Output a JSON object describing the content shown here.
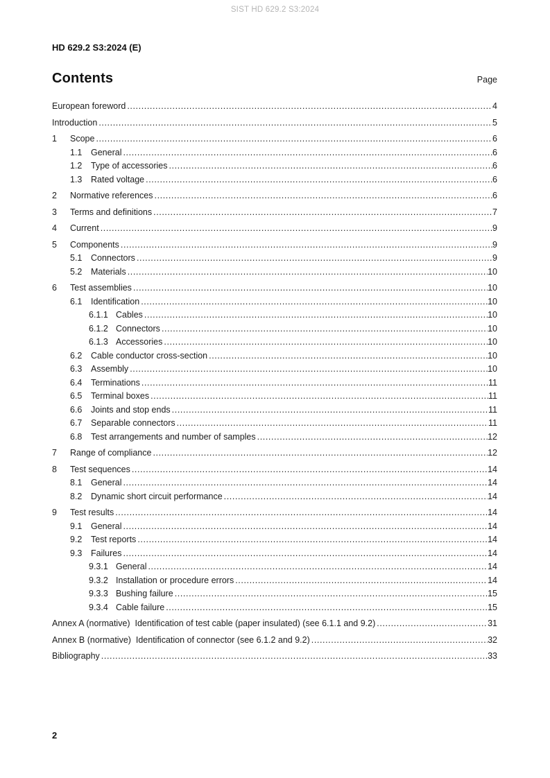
{
  "header": {
    "watermark": "SIST HD 629.2 S3:2024",
    "doc_code": "HD 629.2 S3:2024 (E)"
  },
  "contents": {
    "title": "Contents",
    "page_column_label": "Page"
  },
  "toc": {
    "entries": [
      {
        "level": 0,
        "num": "",
        "label": "European foreword",
        "page": "4"
      },
      {
        "level": 0,
        "num": "",
        "label": "Introduction",
        "page": "5"
      },
      {
        "level": 1,
        "num": "1",
        "label": "Scope",
        "page": "6"
      },
      {
        "level": 2,
        "num": "1.1",
        "label": "General",
        "page": "6"
      },
      {
        "level": 2,
        "num": "1.2",
        "label": "Type of accessories",
        "page": "6"
      },
      {
        "level": 2,
        "num": "1.3",
        "label": "Rated voltage",
        "page": "6"
      },
      {
        "level": 1,
        "num": "2",
        "label": "Normative references",
        "page": "6"
      },
      {
        "level": 1,
        "num": "3",
        "label": "Terms and definitions",
        "page": "7"
      },
      {
        "level": 1,
        "num": "4",
        "label": "Current",
        "page": "9"
      },
      {
        "level": 1,
        "num": "5",
        "label": "Components",
        "page": "9"
      },
      {
        "level": 2,
        "num": "5.1",
        "label": "Connectors",
        "page": "9"
      },
      {
        "level": 2,
        "num": "5.2",
        "label": "Materials",
        "page": "10"
      },
      {
        "level": 1,
        "num": "6",
        "label": "Test assemblies",
        "page": "10"
      },
      {
        "level": 2,
        "num": "6.1",
        "label": "Identification",
        "page": "10"
      },
      {
        "level": 3,
        "num": "6.1.1",
        "label": "Cables",
        "page": "10"
      },
      {
        "level": 3,
        "num": "6.1.2",
        "label": "Connectors",
        "page": "10"
      },
      {
        "level": 3,
        "num": "6.1.3",
        "label": "Accessories",
        "page": "10"
      },
      {
        "level": 2,
        "num": "6.2",
        "label": "Cable conductor cross-section",
        "page": "10"
      },
      {
        "level": 2,
        "num": "6.3",
        "label": "Assembly",
        "page": "10"
      },
      {
        "level": 2,
        "num": "6.4",
        "label": "Terminations",
        "page": "11"
      },
      {
        "level": 2,
        "num": "6.5",
        "label": "Terminal boxes",
        "page": "11"
      },
      {
        "level": 2,
        "num": "6.6",
        "label": "Joints and stop ends",
        "page": "11"
      },
      {
        "level": 2,
        "num": "6.7",
        "label": "Separable connectors",
        "page": "11"
      },
      {
        "level": 2,
        "num": "6.8",
        "label": "Test arrangements and number of samples",
        "page": "12"
      },
      {
        "level": 1,
        "num": "7",
        "label": "Range of compliance",
        "page": "12"
      },
      {
        "level": 1,
        "num": "8",
        "label": "Test sequences",
        "page": "14"
      },
      {
        "level": 2,
        "num": "8.1",
        "label": "General",
        "page": "14"
      },
      {
        "level": 2,
        "num": "8.2",
        "label": "Dynamic short circuit performance",
        "page": "14"
      },
      {
        "level": 1,
        "num": "9",
        "label": "Test results",
        "page": "14"
      },
      {
        "level": 2,
        "num": "9.1",
        "label": "General",
        "page": "14"
      },
      {
        "level": 2,
        "num": "9.2",
        "label": "Test reports",
        "page": "14"
      },
      {
        "level": 2,
        "num": "9.3",
        "label": "Failures",
        "page": "14"
      },
      {
        "level": 3,
        "num": "9.3.1",
        "label": "General",
        "page": "14"
      },
      {
        "level": 3,
        "num": "9.3.2",
        "label": "Installation or procedure errors",
        "page": "14"
      },
      {
        "level": 3,
        "num": "9.3.3",
        "label": "Bushing failure",
        "page": "15"
      },
      {
        "level": 3,
        "num": "9.3.4",
        "label": "Cable failure",
        "page": "15"
      },
      {
        "level": 0,
        "num": "",
        "label": "Annex A (normative)  Identification of test cable (paper insulated) (see 6.1.1 and 9.2)",
        "page": "31"
      },
      {
        "level": 0,
        "num": "",
        "label": "Annex B (normative)  Identification of connector (see 6.1.2 and 9.2)",
        "page": "32"
      },
      {
        "level": 0,
        "num": "",
        "label": "Bibliography",
        "page": "33"
      }
    ]
  },
  "footer": {
    "page_number": "2"
  }
}
